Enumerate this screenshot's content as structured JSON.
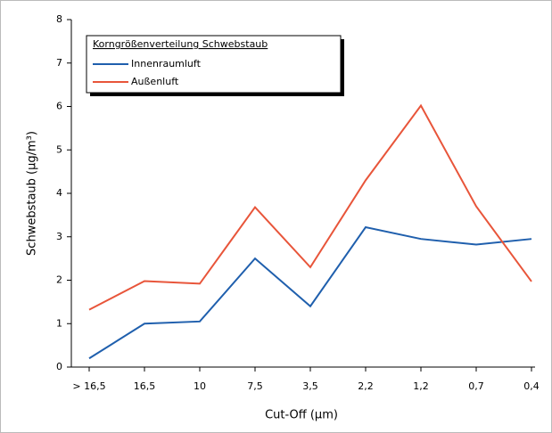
{
  "chart_data": {
    "type": "line",
    "categories": [
      "> 16,5",
      "16,5",
      "10",
      "7,5",
      "3,5",
      "2,2",
      "1,2",
      "0,7",
      "0,4"
    ],
    "series": [
      {
        "name": "Innenraumluft",
        "color": "#1f5fad",
        "values": [
          0.2,
          1.0,
          1.05,
          2.5,
          1.4,
          3.22,
          2.95,
          2.82,
          2.95
        ]
      },
      {
        "name": "Außenluft",
        "color": "#e8553a",
        "values": [
          1.32,
          1.98,
          1.92,
          3.68,
          2.3,
          4.3,
          6.02,
          3.7,
          1.97
        ]
      }
    ],
    "legend_title": "Korngrößenverteilung Schwebstaub",
    "x_label": "Cut-Off (µm)",
    "y_label": "Schwebstaub (µg/m³)",
    "ylim": [
      0,
      8
    ],
    "yticks": [
      0,
      1,
      2,
      3,
      4,
      5,
      6,
      7,
      8
    ],
    "grid": false,
    "legend": "upper left"
  }
}
